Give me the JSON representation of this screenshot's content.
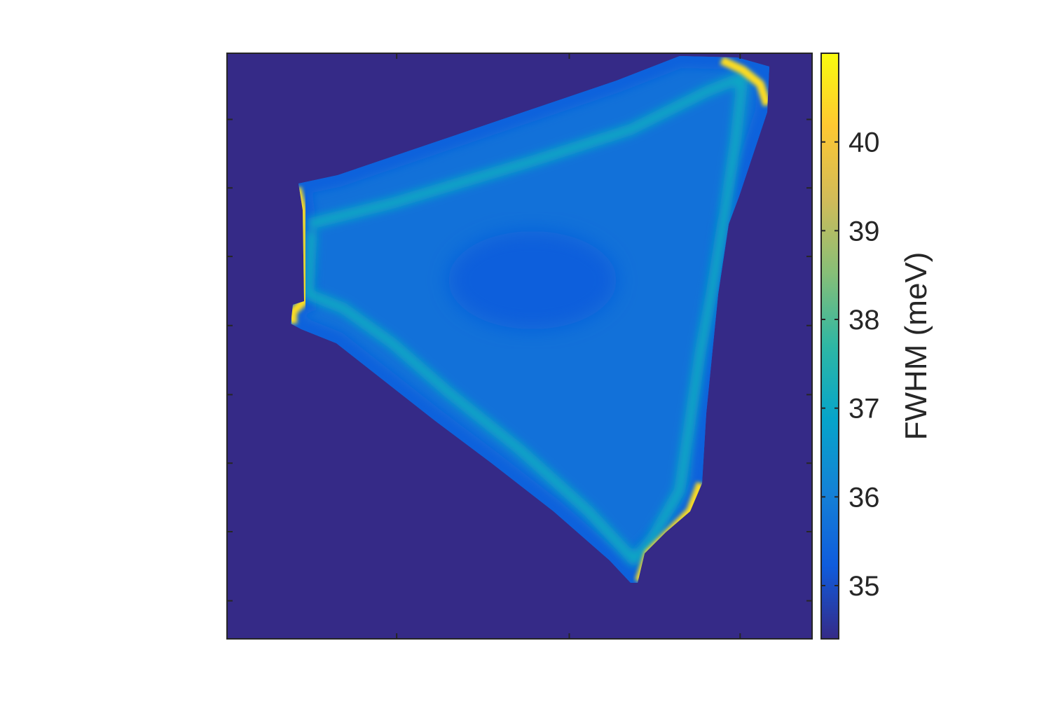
{
  "chart_data": {
    "type": "heatmap",
    "title": "",
    "xlabel": "",
    "ylabel": "",
    "x_tick_labels": [],
    "y_tick_labels": [],
    "colormap": "parula",
    "colorbar": {
      "label": "FWHM (meV)",
      "range": [
        34.4,
        41.0
      ],
      "ticks": [
        35,
        36,
        37,
        38,
        39,
        40
      ],
      "tick_labels": [
        "35",
        "36",
        "37",
        "38",
        "39",
        "40"
      ]
    },
    "background_value": 34.4,
    "flake": {
      "shape": "triangle",
      "interior_value": 35.7,
      "edge_band_value": 37.0,
      "rim_value": 40.5,
      "low_spot_value": 35.3
    }
  },
  "colors": {
    "parula_stops": [
      "#352a87",
      "#0f5cdd",
      "#1481d6",
      "#06a4ca",
      "#2eb7a4",
      "#87bf77",
      "#d1bb59",
      "#fec832",
      "#f9fb0e"
    ],
    "axes": "#262626",
    "grid_background": "#ffffff"
  }
}
